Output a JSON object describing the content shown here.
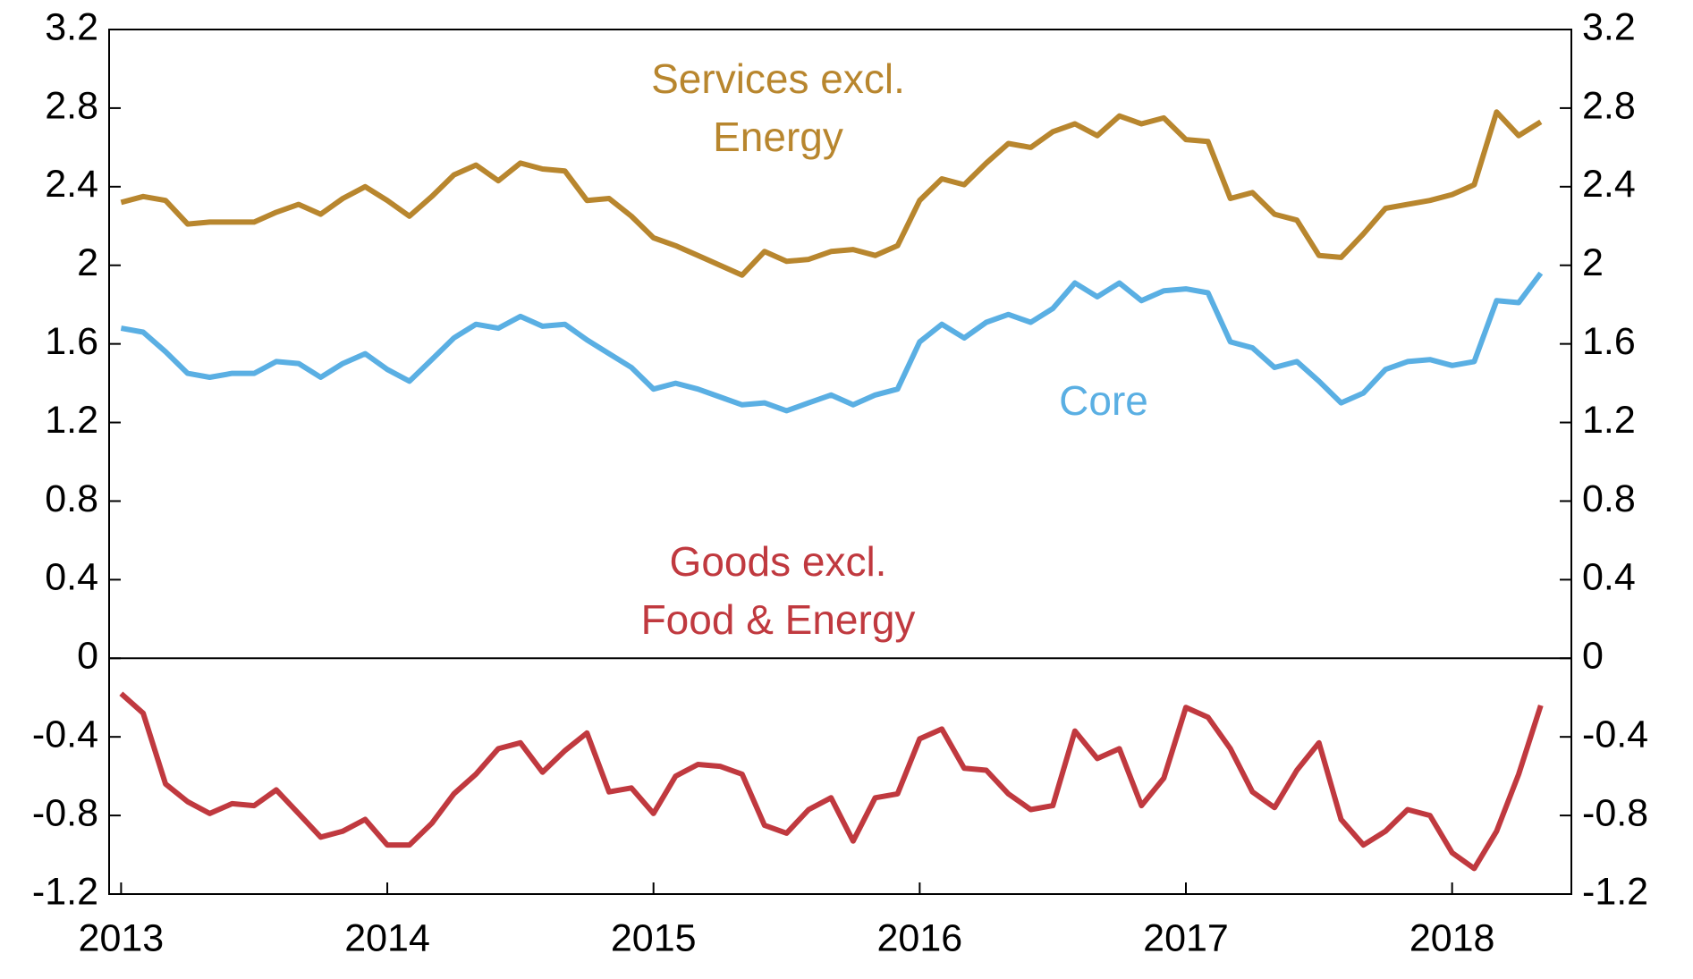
{
  "chart_data": {
    "type": "line",
    "x": [
      2013,
      2013.083,
      2013.167,
      2013.25,
      2013.333,
      2013.417,
      2013.5,
      2013.583,
      2013.667,
      2013.75,
      2013.833,
      2013.917,
      2014,
      2014.083,
      2014.167,
      2014.25,
      2014.333,
      2014.417,
      2014.5,
      2014.583,
      2014.667,
      2014.75,
      2014.833,
      2014.917,
      2015,
      2015.083,
      2015.167,
      2015.25,
      2015.333,
      2015.417,
      2015.5,
      2015.583,
      2015.667,
      2015.75,
      2015.833,
      2015.917,
      2016,
      2016.083,
      2016.167,
      2016.25,
      2016.333,
      2016.417,
      2016.5,
      2016.583,
      2016.667,
      2016.75,
      2016.833,
      2016.917,
      2017,
      2017.083,
      2017.167,
      2017.25,
      2017.333,
      2017.417,
      2017.5,
      2017.583,
      2017.667,
      2017.75,
      2017.833,
      2017.917,
      2018,
      2018.083,
      2018.167,
      2018.25,
      2018.333
    ],
    "series": [
      {
        "color": "#b8862e",
        "values": [
          2.32,
          2.35,
          2.33,
          2.21,
          2.22,
          2.22,
          2.22,
          2.27,
          2.31,
          2.26,
          2.34,
          2.4,
          2.33,
          2.25,
          2.35,
          2.46,
          2.51,
          2.43,
          2.52,
          2.49,
          2.48,
          2.33,
          2.34,
          2.25,
          2.14,
          2.1,
          2.05,
          2.0,
          1.95,
          2.07,
          2.02,
          2.03,
          2.07,
          2.08,
          2.05,
          2.1,
          2.33,
          2.44,
          2.41,
          2.52,
          2.62,
          2.6,
          2.68,
          2.72,
          2.66,
          2.76,
          2.72,
          2.75,
          2.64,
          2.63,
          2.34,
          2.37,
          2.26,
          2.23,
          2.05,
          2.04,
          2.16,
          2.29,
          2.31,
          2.33,
          2.36,
          2.41,
          2.78,
          2.66,
          2.73
        ]
      },
      {
        "color": "#5aafe3",
        "values": [
          1.68,
          1.66,
          1.56,
          1.45,
          1.43,
          1.45,
          1.45,
          1.51,
          1.5,
          1.43,
          1.5,
          1.55,
          1.47,
          1.41,
          1.52,
          1.63,
          1.7,
          1.68,
          1.74,
          1.69,
          1.7,
          1.62,
          1.55,
          1.48,
          1.37,
          1.4,
          1.37,
          1.33,
          1.29,
          1.3,
          1.26,
          1.3,
          1.34,
          1.29,
          1.34,
          1.37,
          1.61,
          1.7,
          1.63,
          1.71,
          1.75,
          1.71,
          1.78,
          1.91,
          1.84,
          1.91,
          1.82,
          1.87,
          1.88,
          1.86,
          1.61,
          1.58,
          1.48,
          1.51,
          1.41,
          1.3,
          1.35,
          1.47,
          1.51,
          1.52,
          1.49,
          1.51,
          1.82,
          1.81,
          1.96
        ]
      },
      {
        "color": "#c0393f",
        "values": [
          -0.18,
          -0.28,
          -0.64,
          -0.73,
          -0.79,
          -0.74,
          -0.75,
          -0.67,
          -0.79,
          -0.91,
          -0.88,
          -0.82,
          -0.95,
          -0.95,
          -0.84,
          -0.69,
          -0.59,
          -0.46,
          -0.43,
          -0.58,
          -0.47,
          -0.38,
          -0.68,
          -0.66,
          -0.79,
          -0.6,
          -0.54,
          -0.55,
          -0.59,
          -0.85,
          -0.89,
          -0.77,
          -0.71,
          -0.93,
          -0.71,
          -0.69,
          -0.41,
          -0.36,
          -0.56,
          -0.57,
          -0.69,
          -0.77,
          -0.75,
          -0.37,
          -0.51,
          -0.46,
          -0.75,
          -0.61,
          -0.25,
          -0.3,
          -0.46,
          -0.68,
          -0.76,
          -0.57,
          -0.43,
          -0.82,
          -0.95,
          -0.88,
          -0.77,
          -0.8,
          -0.99,
          -1.07,
          -0.88,
          -0.59,
          -0.24
        ]
      }
    ],
    "annotations": [
      {
        "lines": [
          "Services excl.",
          "Energy"
        ],
        "color": "#b8862e"
      },
      {
        "lines": [
          "Core"
        ],
        "color": "#5aafe3"
      },
      {
        "lines": [
          "Goods excl.",
          "Food & Energy"
        ],
        "color": "#c0393f"
      }
    ],
    "xlim": [
      2012.955,
      2018.448
    ],
    "xticks": [
      2013,
      2014,
      2015,
      2016,
      2017,
      2018
    ],
    "ylim": [
      -1.2,
      3.2
    ],
    "yticks": [
      3.2,
      2.8,
      2.4,
      2,
      1.6,
      1.2,
      0.8,
      0.4,
      0,
      -0.4,
      -0.8,
      -1.2
    ],
    "y2lim": [
      -1.2,
      3.2
    ],
    "y2ticks": [
      3.2,
      2.8,
      2.4,
      2,
      1.6,
      1.2,
      0.8,
      0.4,
      0,
      -0.4,
      -0.8,
      -1.2
    ]
  }
}
